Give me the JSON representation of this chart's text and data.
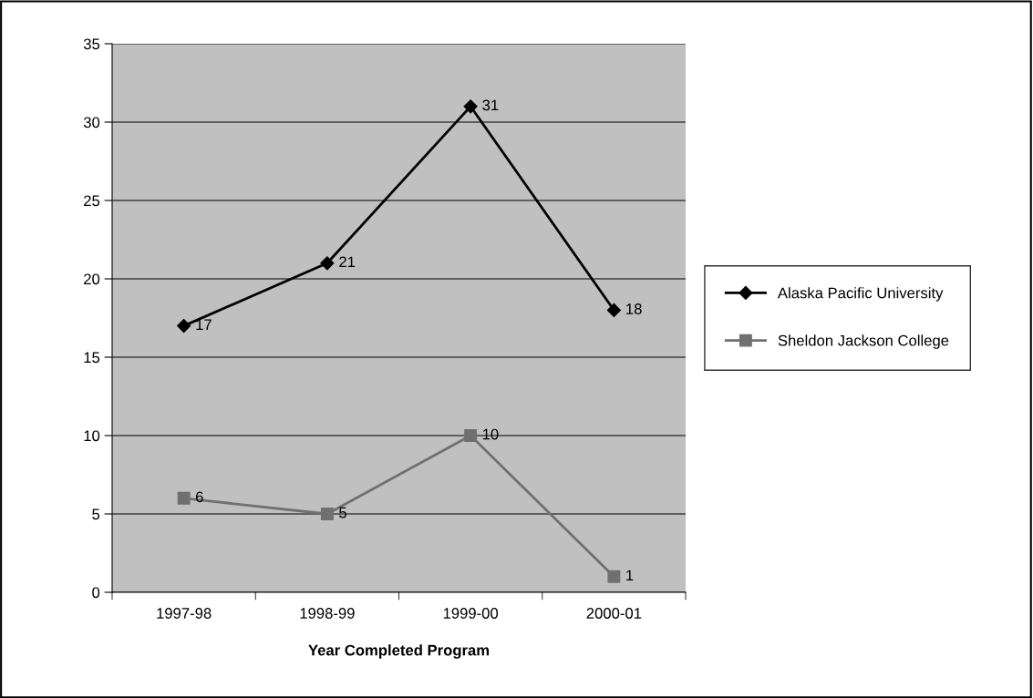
{
  "chart_data": {
    "type": "line",
    "xlabel": "Year Completed Program",
    "categories": [
      "1997-98",
      "1998-99",
      "1999-00",
      "2000-01"
    ],
    "series": [
      {
        "name": "Alaska Pacific University",
        "color": "#000000",
        "marker": "diamond",
        "values": [
          17,
          21,
          31,
          18
        ]
      },
      {
        "name": "Sheldon Jackson College",
        "color": "#707070",
        "marker": "square",
        "values": [
          6,
          5,
          10,
          1
        ]
      }
    ],
    "ylim": [
      0,
      35
    ],
    "yticks": [
      0,
      5,
      10,
      15,
      20,
      25,
      30,
      35
    ],
    "grid": "y",
    "legend": "right",
    "data_labels": true,
    "line_style": "solid"
  }
}
